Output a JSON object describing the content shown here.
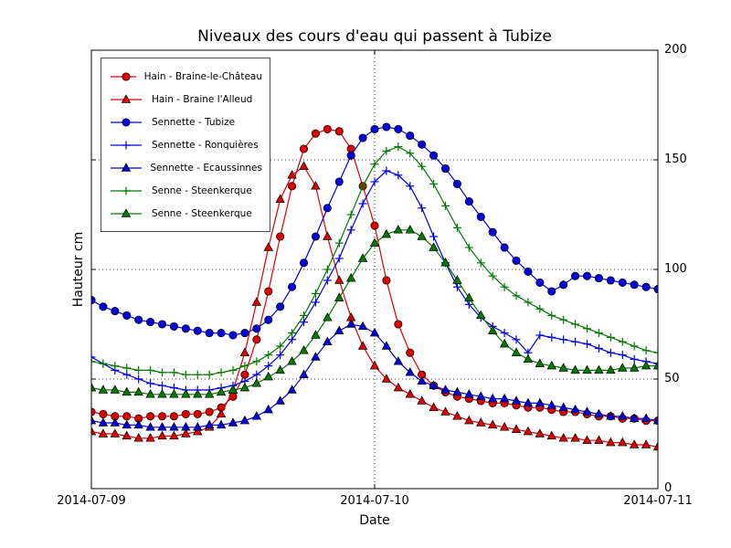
{
  "chart_data": {
    "type": "line",
    "title": "Niveaux des cours d'eau qui passent à Tubize",
    "xlabel": "Date",
    "ylabel": "Hauteur cm",
    "x_tick_labels": [
      "2014-07-09",
      "2014-07-10",
      "2014-07-11"
    ],
    "x_tick_hours": [
      0,
      24,
      48
    ],
    "x_span_hours": 48,
    "y_tick_labels": [
      "200",
      "150",
      "100",
      "50",
      "0"
    ],
    "y_ticks": [
      0,
      50,
      100,
      150,
      200
    ],
    "ylim": [
      0,
      200
    ],
    "grid": {
      "style": "dotted",
      "x_hours": [
        24
      ],
      "y_values": [
        50,
        100,
        150
      ]
    },
    "legend_position": "upper-left",
    "series": [
      {
        "name": "Hain - Braine-le-Château",
        "color": "#dd0000",
        "marker": "circle",
        "values": [
          35,
          34,
          33,
          33,
          32,
          33,
          33,
          33,
          34,
          34,
          35,
          37,
          42,
          52,
          68,
          90,
          115,
          138,
          155,
          162,
          164,
          163,
          155,
          138,
          120,
          95,
          75,
          62,
          52,
          47,
          44,
          42,
          41,
          40,
          39,
          39,
          38,
          37,
          37,
          36,
          35,
          35,
          34,
          33,
          33,
          32,
          32,
          31,
          31
        ]
      },
      {
        "name": "Hain - Braine l'Alleud",
        "color": "#dd0000",
        "marker": "triangle",
        "values": [
          26,
          25,
          25,
          24,
          23,
          23,
          24,
          24,
          25,
          26,
          28,
          34,
          45,
          62,
          85,
          110,
          132,
          143,
          147,
          138,
          115,
          95,
          78,
          65,
          56,
          50,
          46,
          43,
          40,
          37,
          35,
          33,
          31,
          30,
          29,
          28,
          27,
          26,
          25,
          24,
          23,
          23,
          22,
          22,
          21,
          21,
          20,
          20,
          19
        ]
      },
      {
        "name": "Sennette - Tubize",
        "color": "#0000dd",
        "marker": "circle",
        "values": [
          86,
          83,
          81,
          79,
          77,
          76,
          75,
          74,
          73,
          72,
          71,
          71,
          70,
          71,
          73,
          77,
          83,
          92,
          103,
          115,
          128,
          140,
          152,
          160,
          164,
          165,
          164,
          161,
          157,
          152,
          146,
          139,
          131,
          124,
          117,
          110,
          104,
          99,
          94,
          90,
          93,
          97,
          97,
          96,
          95,
          94,
          93,
          92,
          91
        ]
      },
      {
        "name": "Sennette - Ronquières",
        "color": "#0000dd",
        "marker": "plus",
        "values": [
          60,
          57,
          54,
          52,
          50,
          48,
          47,
          46,
          45,
          45,
          45,
          46,
          47,
          49,
          52,
          56,
          61,
          68,
          76,
          85,
          95,
          105,
          118,
          130,
          140,
          145,
          143,
          138,
          128,
          115,
          103,
          92,
          84,
          78,
          74,
          71,
          68,
          62,
          70,
          69,
          68,
          67,
          66,
          64,
          62,
          61,
          59,
          58,
          57
        ]
      },
      {
        "name": "Sennette - Ecaussinnes",
        "color": "#0000dd",
        "marker": "triangle",
        "values": [
          31,
          30,
          30,
          29,
          29,
          28,
          28,
          28,
          28,
          28,
          29,
          29,
          30,
          31,
          33,
          36,
          40,
          45,
          52,
          60,
          67,
          72,
          75,
          74,
          71,
          65,
          58,
          53,
          49,
          47,
          45,
          44,
          43,
          42,
          41,
          41,
          40,
          39,
          39,
          38,
          37,
          36,
          35,
          34,
          33,
          33,
          32,
          32,
          31
        ]
      },
      {
        "name": "Senne - Steenkerque",
        "color": "#007a00",
        "marker": "plus",
        "values": [
          58,
          57,
          56,
          55,
          54,
          54,
          53,
          53,
          52,
          52,
          52,
          53,
          54,
          56,
          58,
          61,
          65,
          71,
          79,
          89,
          100,
          112,
          125,
          138,
          148,
          154,
          156,
          153,
          147,
          139,
          129,
          119,
          110,
          103,
          97,
          92,
          88,
          85,
          82,
          79,
          77,
          75,
          73,
          71,
          69,
          67,
          65,
          63,
          62
        ]
      },
      {
        "name": "Senne - Steenkerque",
        "color": "#007a00",
        "marker": "triangle",
        "values": [
          46,
          45,
          45,
          44,
          44,
          43,
          43,
          43,
          43,
          43,
          43,
          44,
          45,
          46,
          48,
          51,
          54,
          58,
          63,
          70,
          78,
          87,
          96,
          105,
          112,
          116,
          118,
          118,
          115,
          110,
          103,
          95,
          87,
          79,
          72,
          66,
          62,
          59,
          57,
          56,
          55,
          54,
          54,
          54,
          54,
          55,
          55,
          56,
          56
        ]
      }
    ]
  }
}
